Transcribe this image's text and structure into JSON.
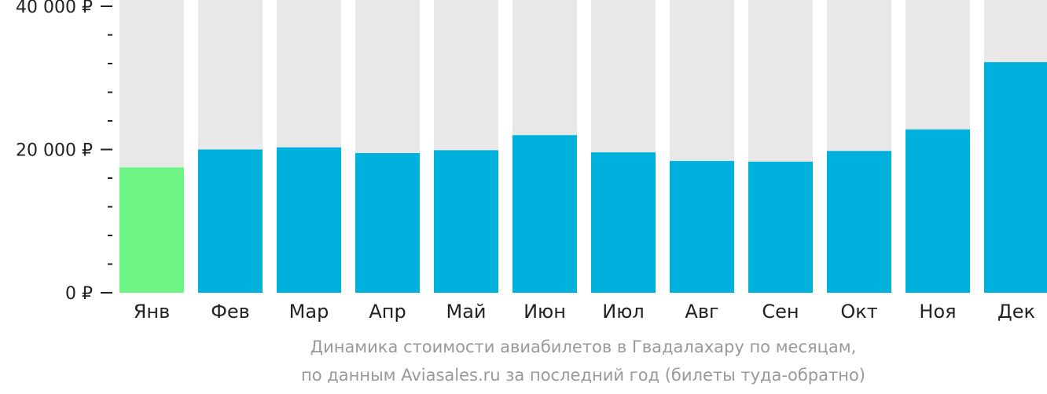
{
  "chart_data": {
    "type": "bar",
    "categories": [
      "Янв",
      "Фев",
      "Мар",
      "Апр",
      "Май",
      "Июн",
      "Июл",
      "Авг",
      "Сен",
      "Окт",
      "Ноя",
      "Дек"
    ],
    "values": [
      17500,
      20000,
      20300,
      19500,
      19900,
      22000,
      19600,
      18400,
      18300,
      19800,
      22800,
      32200
    ],
    "highlight_index": 0,
    "ylim": [
      0,
      40000
    ],
    "yticks": [
      {
        "value": 0,
        "label": "0 ₽"
      },
      {
        "value": 20000,
        "label": "20 000 ₽"
      },
      {
        "value": 40000,
        "label": "40 000 ₽"
      }
    ],
    "minor_ytick_step": 4000,
    "colors": {
      "bar": "#00b0dd",
      "highlight": "#6cf585",
      "background_bar": "#e8e8e8",
      "axis": "#222222"
    },
    "caption_line1": "Динамика стоимости авиабилетов в Гвадалахару по месяцам,",
    "caption_line2": "по данным Aviasales.ru за последний год (билеты туда-обратно)"
  }
}
